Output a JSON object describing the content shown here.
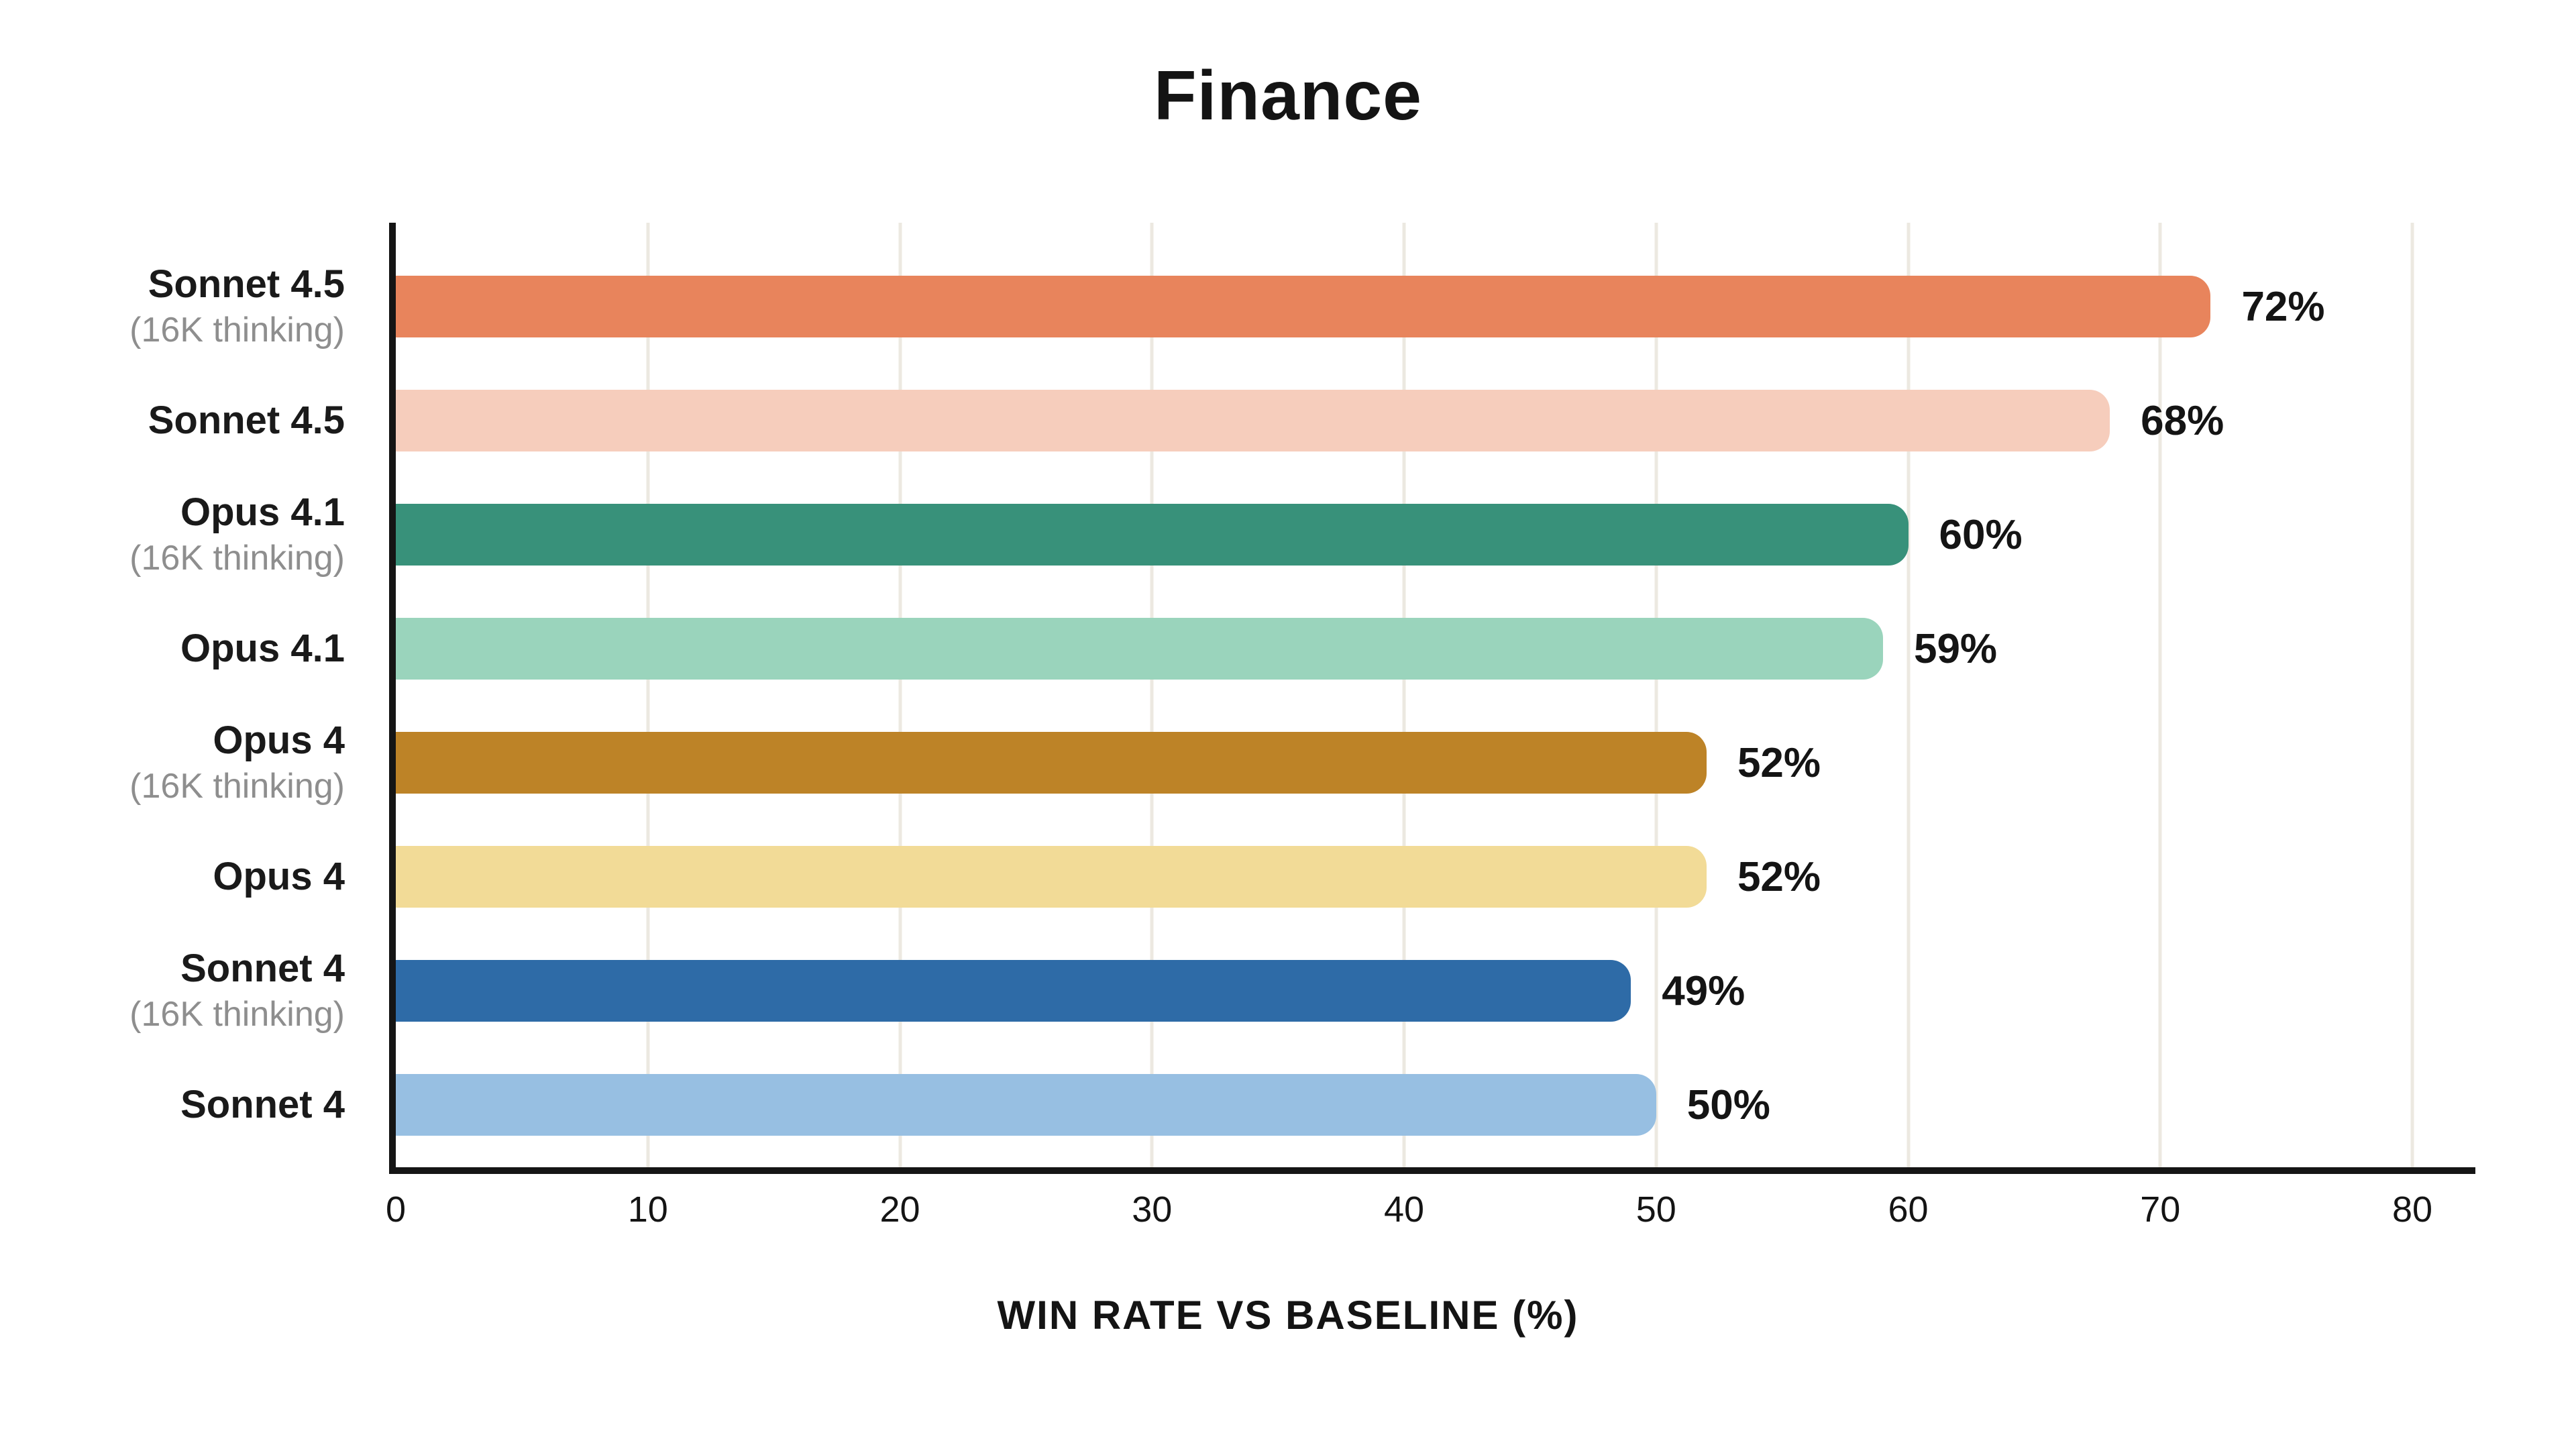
{
  "chart_data": {
    "type": "bar",
    "orientation": "horizontal",
    "title": "Finance",
    "xlabel": "WIN RATE VS BASELINE (%)",
    "xlim": [
      0,
      80
    ],
    "xticks": [
      0,
      10,
      20,
      30,
      40,
      50,
      60,
      70,
      80
    ],
    "grid": true,
    "categories": [
      {
        "label": "Sonnet 4.5",
        "sublabel": "(16K thinking)"
      },
      {
        "label": "Sonnet 4.5",
        "sublabel": ""
      },
      {
        "label": "Opus 4.1",
        "sublabel": "(16K thinking)"
      },
      {
        "label": "Opus 4.1",
        "sublabel": ""
      },
      {
        "label": "Opus 4",
        "sublabel": "(16K thinking)"
      },
      {
        "label": "Opus 4",
        "sublabel": ""
      },
      {
        "label": "Sonnet 4",
        "sublabel": "(16K thinking)"
      },
      {
        "label": "Sonnet 4",
        "sublabel": ""
      }
    ],
    "values": [
      72,
      68,
      60,
      59,
      52,
      52,
      49,
      50
    ],
    "value_labels": [
      "72%",
      "68%",
      "60%",
      "59%",
      "52%",
      "52%",
      "49%",
      "50%"
    ],
    "bar_colors": [
      "#E8845C",
      "#F6CDBC",
      "#38917A",
      "#9AD4BC",
      "#BD8327",
      "#F2DB97",
      "#2E6BA7",
      "#97BFE2"
    ]
  }
}
